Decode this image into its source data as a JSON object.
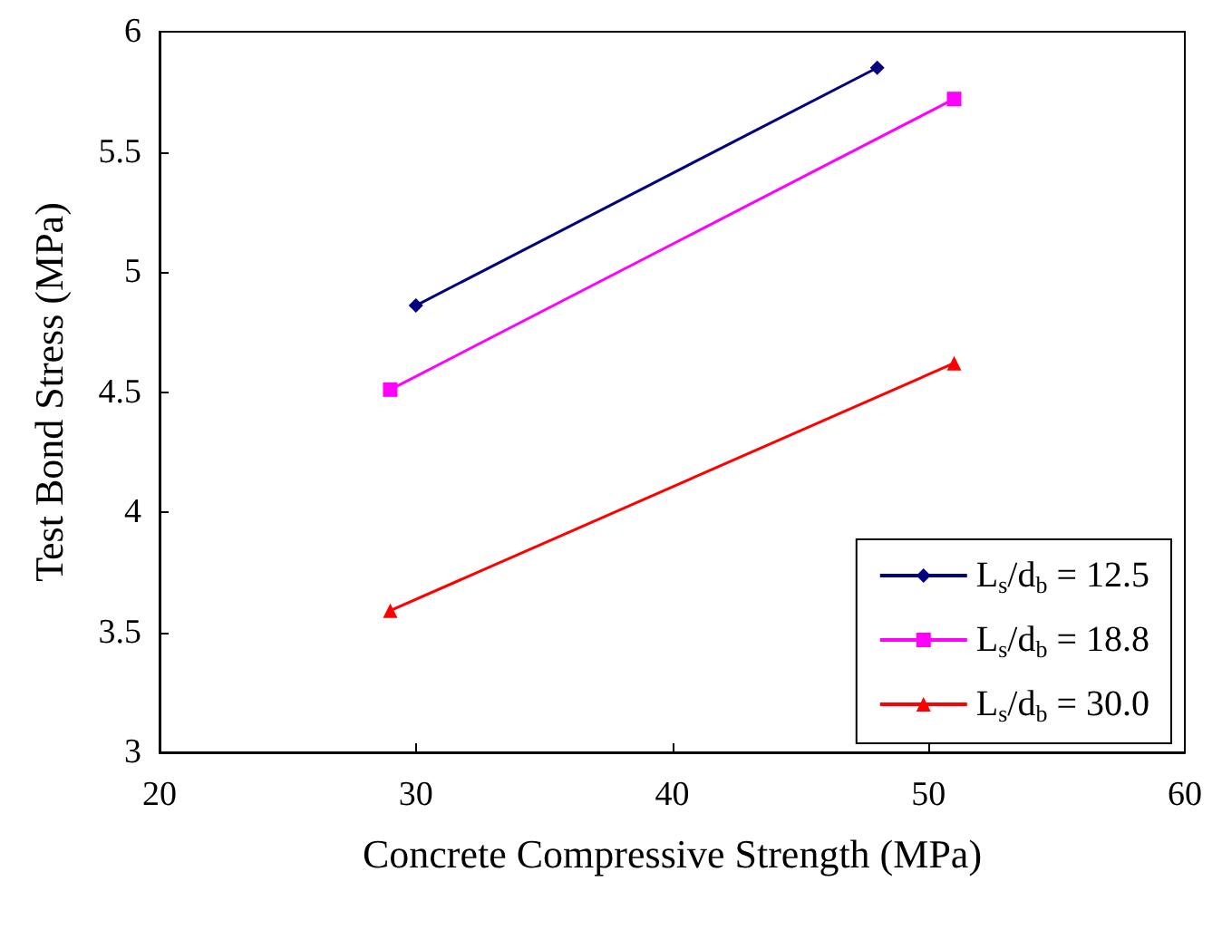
{
  "chart_data": {
    "type": "line",
    "xlabel": "Concrete Compressive Strength (MPa)",
    "ylabel": "Test Bond Stress (MPa)",
    "xlim": [
      20,
      60
    ],
    "xticks": [
      20,
      30,
      40,
      50,
      60
    ],
    "ylim": [
      3,
      6
    ],
    "yticks": [
      3,
      3.5,
      4,
      4.5,
      5,
      5.5,
      6
    ],
    "grid": false,
    "legend": "bottom right",
    "series": [
      {
        "name": "L$_{s}$/d$_{b}$ = 12.5",
        "color": "#000080",
        "marker": "diamond",
        "x": [
          30,
          48
        ],
        "values": [
          4.86,
          5.85
        ]
      },
      {
        "name": "L$_{s}$/d$_{b}$ = 18.8",
        "color": "#ff00ff",
        "marker": "square",
        "x": [
          29,
          51
        ],
        "values": [
          4.51,
          5.72
        ]
      },
      {
        "name": "L$_{s}$/d$_{b}$ = 30.0",
        "color": "#ff0000",
        "marker": "triangle",
        "x": [
          29,
          51
        ],
        "values": [
          3.59,
          4.62
        ]
      }
    ]
  }
}
